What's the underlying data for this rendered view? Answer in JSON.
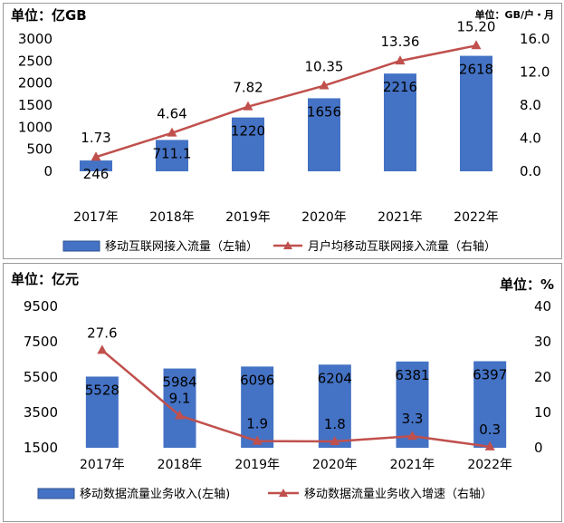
{
  "top_chart": {
    "left_unit": "单位：亿GB",
    "right_unit": "单位：GB/户・月",
    "legend": {
      "bar_label": "移动互联网接入流量（左轴）",
      "line_label": "月户均移动互联网接入流量（右轴）"
    }
  },
  "bottom_chart": {
    "left_unit": "单位：亿元",
    "right_unit": "单位：%",
    "legend": {
      "bar_label": "移动数据流量业务收入(左轴)",
      "line_label": "移动数据流量业务收入增速（右轴）"
    }
  },
  "colors": {
    "bar": "#4472c4",
    "line": "#c0504d"
  },
  "chart_data": [
    {
      "type": "bar+line",
      "categories": [
        "2017年",
        "2018年",
        "2019年",
        "2020年",
        "2021年",
        "2022年"
      ],
      "series": [
        {
          "name": "移动互联网接入流量（左轴）",
          "axis": "left",
          "kind": "bar",
          "values": [
            246,
            711.1,
            1220,
            1656,
            2216,
            2618
          ],
          "labels": [
            "246",
            "711.1",
            "1220",
            "1656",
            "2216",
            "2618"
          ]
        },
        {
          "name": "月户均移动互联网接入流量（右轴）",
          "axis": "right",
          "kind": "line",
          "values": [
            1.73,
            4.64,
            7.82,
            10.35,
            13.36,
            15.2
          ],
          "labels": [
            "1.73",
            "4.64",
            "7.82",
            "10.35",
            "13.36",
            "15.20"
          ]
        }
      ],
      "left_axis": {
        "range": [
          0,
          3000
        ],
        "ticks": [
          "0",
          "500",
          "1000",
          "1500",
          "2000",
          "2500",
          "3000"
        ]
      },
      "right_axis": {
        "range": [
          0,
          16
        ],
        "ticks": [
          "0.0",
          "4.0",
          "8.0",
          "12.0",
          "16.0"
        ]
      }
    },
    {
      "type": "bar+line",
      "categories": [
        "2017年",
        "2018年",
        "2019年",
        "2020年",
        "2021年",
        "2022年"
      ],
      "series": [
        {
          "name": "移动数据流量业务收入(左轴)",
          "axis": "left",
          "kind": "bar",
          "values": [
            5528,
            5984,
            6096,
            6204,
            6381,
            6397
          ],
          "labels": [
            "5528",
            "5984",
            "6096",
            "6204",
            "6381",
            "6397"
          ]
        },
        {
          "name": "移动数据流量业务收入增速（右轴）",
          "axis": "right",
          "kind": "line",
          "values": [
            27.6,
            9.1,
            1.9,
            1.8,
            3.3,
            0.3
          ],
          "labels": [
            "27.6",
            "9.1",
            "1.9",
            "1.8",
            "3.3",
            "0.3"
          ]
        }
      ],
      "left_axis": {
        "range": [
          1500,
          9500
        ],
        "ticks": [
          "1500",
          "3500",
          "5500",
          "7500",
          "9500"
        ]
      },
      "right_axis": {
        "range": [
          0,
          40
        ],
        "ticks": [
          "0",
          "10",
          "20",
          "30",
          "40"
        ]
      }
    }
  ]
}
